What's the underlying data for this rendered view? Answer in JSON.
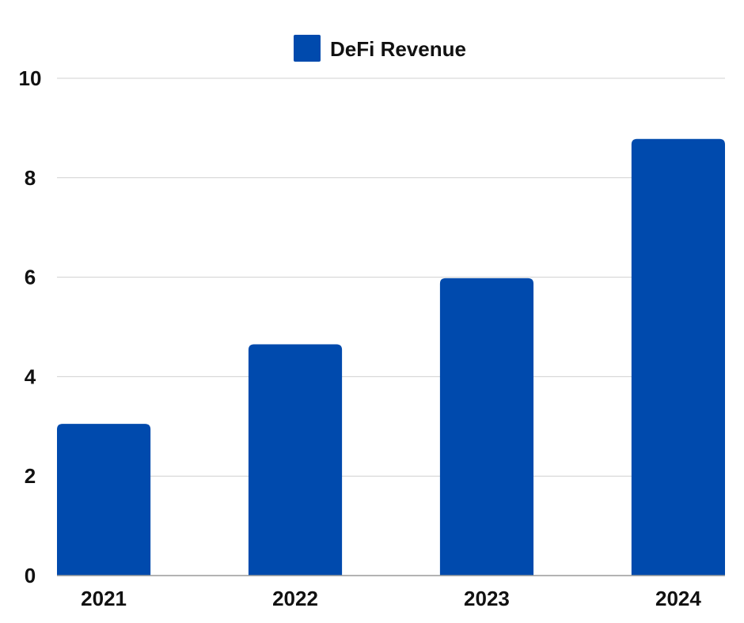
{
  "chart_data": {
    "type": "bar",
    "categories": [
      "2021",
      "2022",
      "2023",
      "2024"
    ],
    "series": [
      {
        "name": "DeFi Revenue",
        "values": [
          3.05,
          4.65,
          5.98,
          8.78
        ],
        "color": "#004AAD"
      }
    ],
    "ylim": [
      0,
      10
    ],
    "yticks": [
      0,
      2,
      4,
      6,
      8,
      10
    ],
    "grid": true,
    "legend_position": "top-center"
  }
}
